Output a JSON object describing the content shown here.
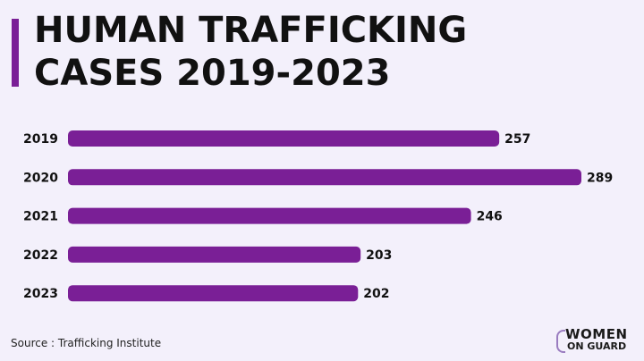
{
  "chart_data": {
    "type": "bar",
    "orientation": "horizontal",
    "title": "HUMAN TRAFFICKING CASES 2019-2023",
    "categories": [
      "2019",
      "2020",
      "2021",
      "2022",
      "2023"
    ],
    "values": [
      257,
      289,
      246,
      203,
      202
    ],
    "data_labels": [
      "257",
      "289",
      "246",
      "203",
      "202"
    ],
    "grid": false,
    "bar_color": "#7a1f96"
  },
  "title_lines": [
    "HUMAN TRAFFICKING",
    "CASES 2019-2023"
  ],
  "source": "Source : Trafficking Institute",
  "logo": {
    "line1": "WOMEN",
    "line2": "ON GUARD"
  },
  "colors": {
    "background": "#f3f0fb",
    "accent": "#7a1f96",
    "text": "#111111"
  }
}
